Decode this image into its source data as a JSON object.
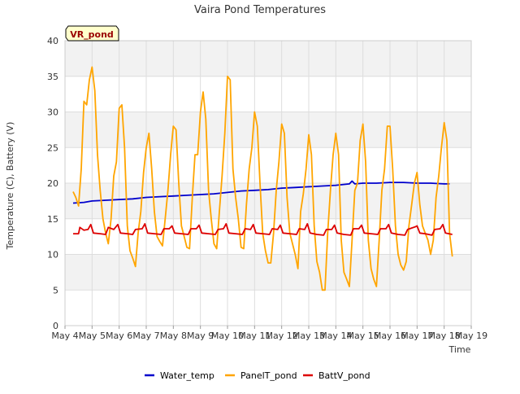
{
  "chart_data": {
    "type": "line",
    "title": "Vaira Pond Temperatures",
    "site_label": "VR_pond",
    "xlabel": "Time",
    "ylabel": "Temperature (C), Battery (V)",
    "ylim": [
      0,
      40
    ],
    "yticks": [
      0,
      5,
      10,
      15,
      20,
      25,
      30,
      35,
      40
    ],
    "xlim": [
      4,
      19
    ],
    "xticks": [
      {
        "v": 4,
        "label": "May 4"
      },
      {
        "v": 5,
        "label": "May 5"
      },
      {
        "v": 6,
        "label": "May 6"
      },
      {
        "v": 7,
        "label": "May 7"
      },
      {
        "v": 8,
        "label": "May 8"
      },
      {
        "v": 9,
        "label": "May 9"
      },
      {
        "v": 10,
        "label": "May 10"
      },
      {
        "v": 11,
        "label": "May 11"
      },
      {
        "v": 12,
        "label": "May 12"
      },
      {
        "v": 13,
        "label": "May 13"
      },
      {
        "v": 14,
        "label": "May 14"
      },
      {
        "v": 15,
        "label": "May 15"
      },
      {
        "v": 16,
        "label": "May 16"
      },
      {
        "v": 17,
        "label": "May 17"
      },
      {
        "v": 18,
        "label": "May 18"
      },
      {
        "v": 19,
        "label": "May 19"
      }
    ],
    "grid": true,
    "legend_position": "bottom",
    "series": [
      {
        "name": "Water_temp",
        "color": "#0000cc",
        "points": [
          [
            4.3,
            17.2
          ],
          [
            4.7,
            17.3
          ],
          [
            5.0,
            17.5
          ],
          [
            5.5,
            17.6
          ],
          [
            6.0,
            17.7
          ],
          [
            6.5,
            17.8
          ],
          [
            7.0,
            18.0
          ],
          [
            7.5,
            18.1
          ],
          [
            8.0,
            18.2
          ],
          [
            8.5,
            18.3
          ],
          [
            9.0,
            18.4
          ],
          [
            9.5,
            18.5
          ],
          [
            10.0,
            18.7
          ],
          [
            10.5,
            18.9
          ],
          [
            11.0,
            19.0
          ],
          [
            11.5,
            19.1
          ],
          [
            12.0,
            19.3
          ],
          [
            12.5,
            19.4
          ],
          [
            13.0,
            19.5
          ],
          [
            13.5,
            19.6
          ],
          [
            14.0,
            19.7
          ],
          [
            14.5,
            19.9
          ],
          [
            14.6,
            20.3
          ],
          [
            14.7,
            19.9
          ],
          [
            15.0,
            20.0
          ],
          [
            15.5,
            20.0
          ],
          [
            16.0,
            20.1
          ],
          [
            16.5,
            20.1
          ],
          [
            17.0,
            20.0
          ],
          [
            17.5,
            20.0
          ],
          [
            18.0,
            19.9
          ],
          [
            18.2,
            19.9
          ]
        ]
      },
      {
        "name": "PanelT_pond",
        "color": "#ffa500",
        "points": [
          [
            4.3,
            18.8
          ],
          [
            4.4,
            18.0
          ],
          [
            4.5,
            16.8
          ],
          [
            4.6,
            22.0
          ],
          [
            4.7,
            31.5
          ],
          [
            4.8,
            31.0
          ],
          [
            4.9,
            34.5
          ],
          [
            5.0,
            36.3
          ],
          [
            5.1,
            33.0
          ],
          [
            5.2,
            24.0
          ],
          [
            5.3,
            19.0
          ],
          [
            5.4,
            15.0
          ],
          [
            5.5,
            13.0
          ],
          [
            5.6,
            11.5
          ],
          [
            5.7,
            15.0
          ],
          [
            5.8,
            21.0
          ],
          [
            5.9,
            23.0
          ],
          [
            6.0,
            30.5
          ],
          [
            6.1,
            31.0
          ],
          [
            6.2,
            25.0
          ],
          [
            6.3,
            14.0
          ],
          [
            6.4,
            10.5
          ],
          [
            6.5,
            9.5
          ],
          [
            6.6,
            8.3
          ],
          [
            6.7,
            13.0
          ],
          [
            6.8,
            16.0
          ],
          [
            6.9,
            21.5
          ],
          [
            7.0,
            25.0
          ],
          [
            7.1,
            27.0
          ],
          [
            7.2,
            22.0
          ],
          [
            7.3,
            16.0
          ],
          [
            7.4,
            12.5
          ],
          [
            7.5,
            11.8
          ],
          [
            7.6,
            11.2
          ],
          [
            7.7,
            15.0
          ],
          [
            7.8,
            19.0
          ],
          [
            7.9,
            24.0
          ],
          [
            8.0,
            28.0
          ],
          [
            8.1,
            27.5
          ],
          [
            8.2,
            20.0
          ],
          [
            8.3,
            14.0
          ],
          [
            8.4,
            12.5
          ],
          [
            8.5,
            11.0
          ],
          [
            8.6,
            10.8
          ],
          [
            8.7,
            18.0
          ],
          [
            8.8,
            24.0
          ],
          [
            8.9,
            24.0
          ],
          [
            9.0,
            30.0
          ],
          [
            9.1,
            32.8
          ],
          [
            9.2,
            29.0
          ],
          [
            9.3,
            19.0
          ],
          [
            9.4,
            15.0
          ],
          [
            9.5,
            11.5
          ],
          [
            9.6,
            10.8
          ],
          [
            9.7,
            16.0
          ],
          [
            9.8,
            21.0
          ],
          [
            9.9,
            27.0
          ],
          [
            10.0,
            35.0
          ],
          [
            10.1,
            34.5
          ],
          [
            10.2,
            22.0
          ],
          [
            10.3,
            18.0
          ],
          [
            10.4,
            15.0
          ],
          [
            10.5,
            11.0
          ],
          [
            10.6,
            10.8
          ],
          [
            10.7,
            17.0
          ],
          [
            10.8,
            22.0
          ],
          [
            10.9,
            25.0
          ],
          [
            11.0,
            30.0
          ],
          [
            11.1,
            28.0
          ],
          [
            11.2,
            20.0
          ],
          [
            11.3,
            13.0
          ],
          [
            11.4,
            10.5
          ],
          [
            11.5,
            8.8
          ],
          [
            11.6,
            8.8
          ],
          [
            11.7,
            13.0
          ],
          [
            11.8,
            19.0
          ],
          [
            11.9,
            23.0
          ],
          [
            12.0,
            28.3
          ],
          [
            12.1,
            27.0
          ],
          [
            12.2,
            18.0
          ],
          [
            12.3,
            13.0
          ],
          [
            12.4,
            11.5
          ],
          [
            12.5,
            10.0
          ],
          [
            12.6,
            8.0
          ],
          [
            12.7,
            16.0
          ],
          [
            12.8,
            18.5
          ],
          [
            12.9,
            22.0
          ],
          [
            13.0,
            26.8
          ],
          [
            13.1,
            24.0
          ],
          [
            13.2,
            14.0
          ],
          [
            13.3,
            9.0
          ],
          [
            13.4,
            7.5
          ],
          [
            13.5,
            5.0
          ],
          [
            13.6,
            5.0
          ],
          [
            13.7,
            13.0
          ],
          [
            13.8,
            19.0
          ],
          [
            13.9,
            24.0
          ],
          [
            14.0,
            27.0
          ],
          [
            14.1,
            24.0
          ],
          [
            14.2,
            12.0
          ],
          [
            14.3,
            7.5
          ],
          [
            14.4,
            6.5
          ],
          [
            14.5,
            5.5
          ],
          [
            14.6,
            12.0
          ],
          [
            14.7,
            19.0
          ],
          [
            14.8,
            20.0
          ],
          [
            14.9,
            26.0
          ],
          [
            15.0,
            28.3
          ],
          [
            15.1,
            23.0
          ],
          [
            15.2,
            12.0
          ],
          [
            15.3,
            8.0
          ],
          [
            15.4,
            6.5
          ],
          [
            15.5,
            5.5
          ],
          [
            15.6,
            12.0
          ],
          [
            15.7,
            19.0
          ],
          [
            15.8,
            22.0
          ],
          [
            15.9,
            28.0
          ],
          [
            16.0,
            28.0
          ],
          [
            16.1,
            22.0
          ],
          [
            16.2,
            14.0
          ],
          [
            16.3,
            10.0
          ],
          [
            16.4,
            8.5
          ],
          [
            16.5,
            7.8
          ],
          [
            16.6,
            9.0
          ],
          [
            16.7,
            14.0
          ],
          [
            16.8,
            17.0
          ],
          [
            16.9,
            20.0
          ],
          [
            17.0,
            21.5
          ],
          [
            17.1,
            17.0
          ],
          [
            17.2,
            14.0
          ],
          [
            17.3,
            13.0
          ],
          [
            17.4,
            12.0
          ],
          [
            17.5,
            10.0
          ],
          [
            17.6,
            12.0
          ],
          [
            17.7,
            18.0
          ],
          [
            17.8,
            21.0
          ],
          [
            17.9,
            25.0
          ],
          [
            18.0,
            28.5
          ],
          [
            18.1,
            26.0
          ],
          [
            18.2,
            13.0
          ],
          [
            18.3,
            9.7
          ]
        ]
      },
      {
        "name": "BattV_pond",
        "color": "#dd0000",
        "points": [
          [
            4.3,
            12.9
          ],
          [
            4.5,
            12.9
          ],
          [
            4.55,
            13.8
          ],
          [
            4.7,
            13.4
          ],
          [
            4.85,
            13.5
          ],
          [
            4.95,
            14.2
          ],
          [
            5.05,
            13.0
          ],
          [
            5.3,
            12.9
          ],
          [
            5.5,
            12.8
          ],
          [
            5.6,
            13.8
          ],
          [
            5.8,
            13.5
          ],
          [
            5.95,
            14.2
          ],
          [
            6.05,
            13.0
          ],
          [
            6.3,
            12.9
          ],
          [
            6.5,
            12.8
          ],
          [
            6.6,
            13.5
          ],
          [
            6.85,
            13.6
          ],
          [
            6.95,
            14.3
          ],
          [
            7.05,
            13.0
          ],
          [
            7.3,
            12.9
          ],
          [
            7.55,
            12.8
          ],
          [
            7.65,
            13.6
          ],
          [
            7.85,
            13.6
          ],
          [
            7.95,
            14.0
          ],
          [
            8.05,
            13.0
          ],
          [
            8.3,
            12.9
          ],
          [
            8.55,
            12.8
          ],
          [
            8.65,
            13.6
          ],
          [
            8.85,
            13.6
          ],
          [
            8.95,
            14.1
          ],
          [
            9.05,
            13.0
          ],
          [
            9.3,
            12.9
          ],
          [
            9.55,
            12.8
          ],
          [
            9.65,
            13.5
          ],
          [
            9.85,
            13.6
          ],
          [
            9.95,
            14.3
          ],
          [
            10.05,
            13.0
          ],
          [
            10.3,
            12.9
          ],
          [
            10.55,
            12.8
          ],
          [
            10.65,
            13.6
          ],
          [
            10.85,
            13.5
          ],
          [
            10.95,
            14.2
          ],
          [
            11.05,
            13.0
          ],
          [
            11.3,
            12.9
          ],
          [
            11.55,
            12.8
          ],
          [
            11.65,
            13.6
          ],
          [
            11.85,
            13.5
          ],
          [
            11.95,
            14.1
          ],
          [
            12.05,
            13.0
          ],
          [
            12.3,
            12.9
          ],
          [
            12.55,
            12.8
          ],
          [
            12.65,
            13.6
          ],
          [
            12.85,
            13.5
          ],
          [
            12.95,
            14.3
          ],
          [
            13.05,
            13.0
          ],
          [
            13.3,
            12.8
          ],
          [
            13.55,
            12.7
          ],
          [
            13.65,
            13.5
          ],
          [
            13.85,
            13.5
          ],
          [
            13.95,
            14.1
          ],
          [
            14.05,
            13.0
          ],
          [
            14.3,
            12.8
          ],
          [
            14.55,
            12.7
          ],
          [
            14.65,
            13.6
          ],
          [
            14.85,
            13.6
          ],
          [
            14.95,
            14.1
          ],
          [
            15.05,
            13.0
          ],
          [
            15.3,
            12.9
          ],
          [
            15.55,
            12.8
          ],
          [
            15.65,
            13.6
          ],
          [
            15.85,
            13.6
          ],
          [
            15.95,
            14.2
          ],
          [
            16.05,
            13.0
          ],
          [
            16.3,
            12.8
          ],
          [
            16.55,
            12.7
          ],
          [
            16.65,
            13.5
          ],
          [
            16.8,
            13.7
          ],
          [
            16.95,
            13.9
          ],
          [
            17.0,
            14.0
          ],
          [
            17.1,
            13.0
          ],
          [
            17.3,
            12.9
          ],
          [
            17.55,
            12.7
          ],
          [
            17.65,
            13.5
          ],
          [
            17.85,
            13.6
          ],
          [
            17.95,
            14.2
          ],
          [
            18.05,
            13.0
          ],
          [
            18.3,
            12.8
          ]
        ]
      }
    ]
  }
}
